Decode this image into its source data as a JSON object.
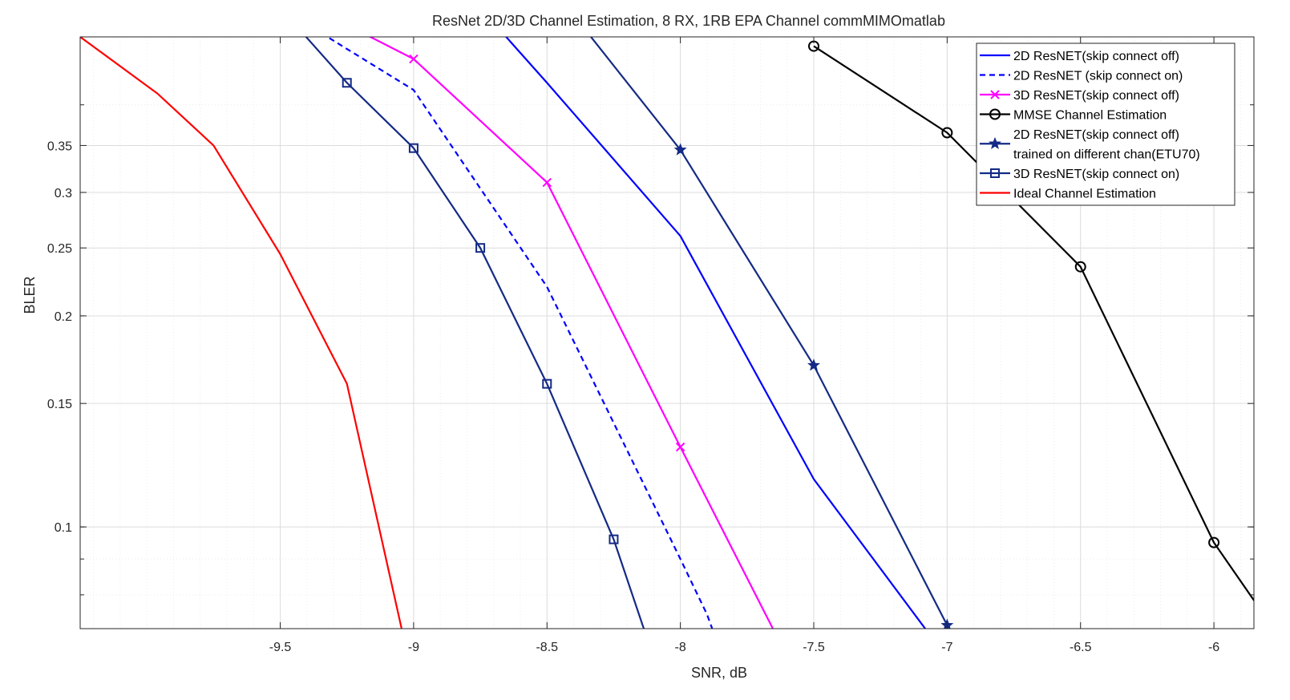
{
  "chart_data": {
    "type": "line",
    "title": "ResNet 2D/3D Channel Estimation, 8 RX, 1RB EPA Channel commMIMOmatlab",
    "xlabel": "SNR, dB",
    "ylabel": "BLER",
    "xlim": [
      -10.25,
      -5.85
    ],
    "ylim": [
      0.0716,
      0.5
    ],
    "yscale": "log",
    "grid": true,
    "legend_position": "top-right",
    "x_ticks": [
      -9.5,
      -9,
      -8.5,
      -8,
      -7.5,
      -7,
      -6.5,
      -6
    ],
    "x_tick_labels": [
      "-9.5",
      "-9",
      "-8.5",
      "-8",
      "-7.5",
      "-7",
      "-6.5",
      "-6"
    ],
    "y_ticks": [
      0.1,
      0.15,
      0.2,
      0.25,
      0.3,
      0.35
    ],
    "y_tick_labels": [
      "0.1",
      "0.15",
      "0.2",
      "0.25",
      "0.3",
      "0.35"
    ],
    "series": [
      {
        "name": "2D ResNET(skip connect off)",
        "color": "#0000FF",
        "dash": "solid",
        "marker": "none",
        "x": [
          -8.75,
          -8.5,
          -8.0,
          -7.5,
          -7.0
        ],
        "y": [
          0.55,
          0.43,
          0.26,
          0.117,
          0.065
        ]
      },
      {
        "name": "2D ResNET (skip connect on)",
        "color": "#0000FF",
        "dash": "dashed",
        "marker": "none",
        "x": [
          -9.5,
          -9.0,
          -8.5,
          -8.0,
          -7.9,
          -7.85
        ],
        "y": [
          0.55,
          0.42,
          0.22,
          0.09,
          0.075,
          0.0665
        ]
      },
      {
        "name": "3D ResNET(skip connect off)",
        "color": "#FF00FF",
        "dash": "solid",
        "marker": "x",
        "x": [
          -9.25,
          -9.0,
          -8.5,
          -8.0,
          -7.5
        ],
        "y": [
          0.52,
          0.465,
          0.31,
          0.13,
          0.055
        ]
      },
      {
        "name": "MMSE Channel Estimation",
        "color": "#000000",
        "dash": "solid",
        "marker": "o",
        "x": [
          -7.5,
          -7.0,
          -6.5,
          -6.0,
          -5.7
        ],
        "y": [
          0.485,
          0.365,
          0.235,
          0.095,
          0.065
        ]
      },
      {
        "name": "2D ResNET(skip connect off)\ntrained on different chan(ETU70)",
        "color": "#142A85",
        "dash": "solid",
        "marker": "*",
        "x": [
          -8.5,
          -8.0,
          -7.5,
          -7.0,
          -6.9
        ],
        "y": [
          0.6,
          0.345,
          0.17,
          0.0724,
          0.06
        ]
      },
      {
        "name": "3D ResNET(skip connect on)",
        "color": "#142A85",
        "dash": "solid",
        "marker": "s",
        "x": [
          -9.5,
          -9.25,
          -9.0,
          -8.75,
          -8.5,
          -8.25,
          -8.1
        ],
        "y": [
          0.55,
          0.43,
          0.347,
          0.25,
          0.16,
          0.096,
          0.065
        ]
      },
      {
        "name": "Ideal Channel Estimation",
        "color": "#FF0000",
        "dash": "solid",
        "marker": "none",
        "x": [
          -10.25,
          -9.96,
          -9.75,
          -9.5,
          -9.25,
          -9.0
        ],
        "y": [
          0.5,
          0.415,
          0.35,
          0.245,
          0.16,
          0.06
        ]
      }
    ]
  }
}
